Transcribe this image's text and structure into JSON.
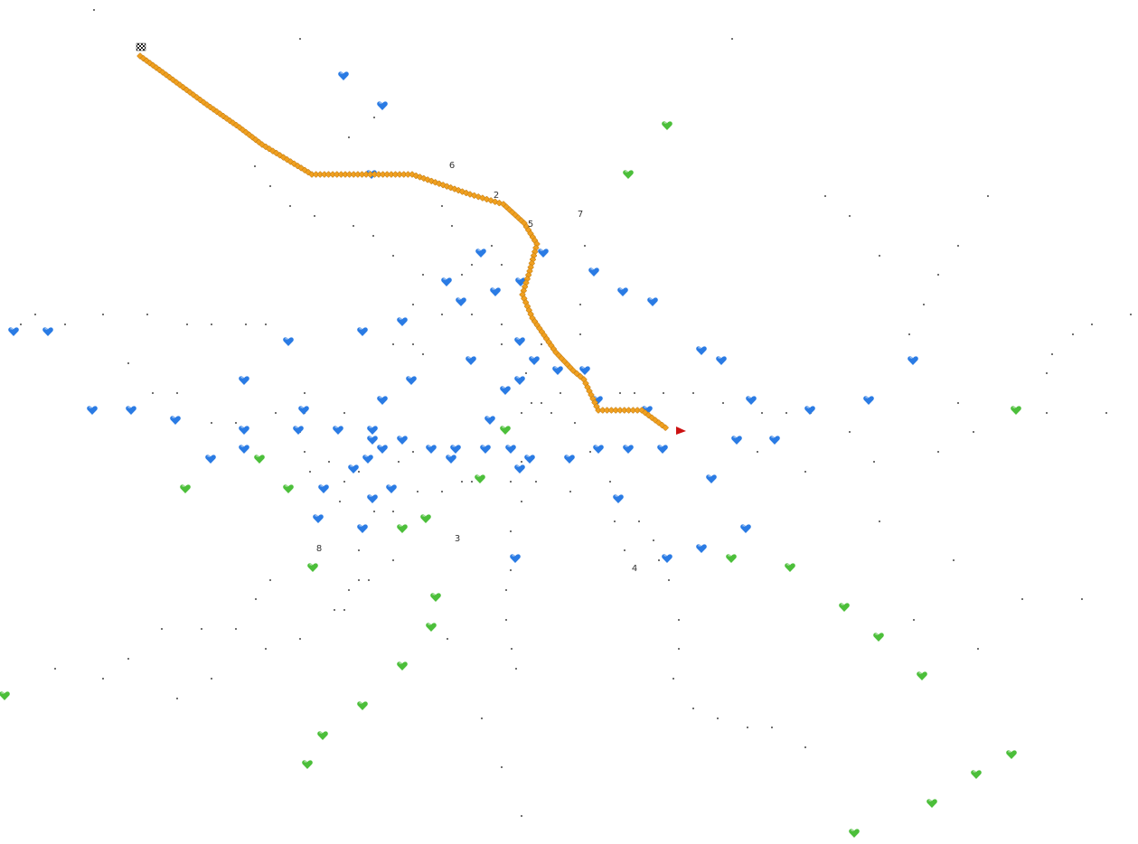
{
  "map": {
    "background": "#ffffff",
    "colors": {
      "route": "#f0a020",
      "route_outline": "#c07a10",
      "blue_marker": "#2a7be4",
      "green_marker": "#4cbf3a",
      "node": "#222222",
      "destination_flag": "#cc1111"
    },
    "waypoint_labels": [
      "6",
      "2",
      "5",
      "7",
      "3",
      "4",
      "8"
    ],
    "icons": {
      "start": "checkered-flag-icon",
      "end": "red-flag-icon",
      "blue": "blue-heart-marker-icon",
      "green": "green-heart-marker-icon"
    }
  }
}
